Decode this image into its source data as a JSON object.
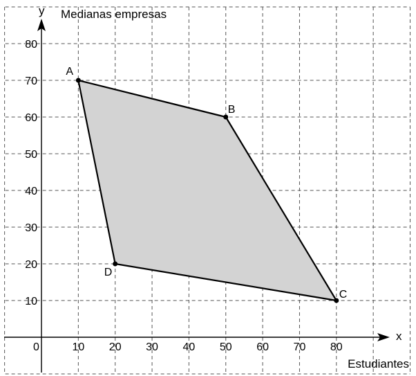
{
  "chart_data": {
    "type": "scatter",
    "title": "",
    "xlabel": "Estudiantes",
    "ylabel": "Medianas empresas",
    "x_axis_name": "x",
    "y_axis_name": "y",
    "origin_label": "0",
    "xlim": [
      -10,
      100
    ],
    "ylim": [
      -10,
      90
    ],
    "x_ticks": [
      10,
      20,
      30,
      40,
      50,
      60,
      70,
      80
    ],
    "y_ticks": [
      10,
      20,
      30,
      40,
      50,
      60,
      70,
      80
    ],
    "grid": true,
    "region_color": "#d3d3d3",
    "vertices": [
      {
        "label": "A",
        "x": 10,
        "y": 70
      },
      {
        "label": "B",
        "x": 50,
        "y": 60
      },
      {
        "label": "C",
        "x": 80,
        "y": 10
      },
      {
        "label": "D",
        "x": 20,
        "y": 20
      }
    ]
  }
}
